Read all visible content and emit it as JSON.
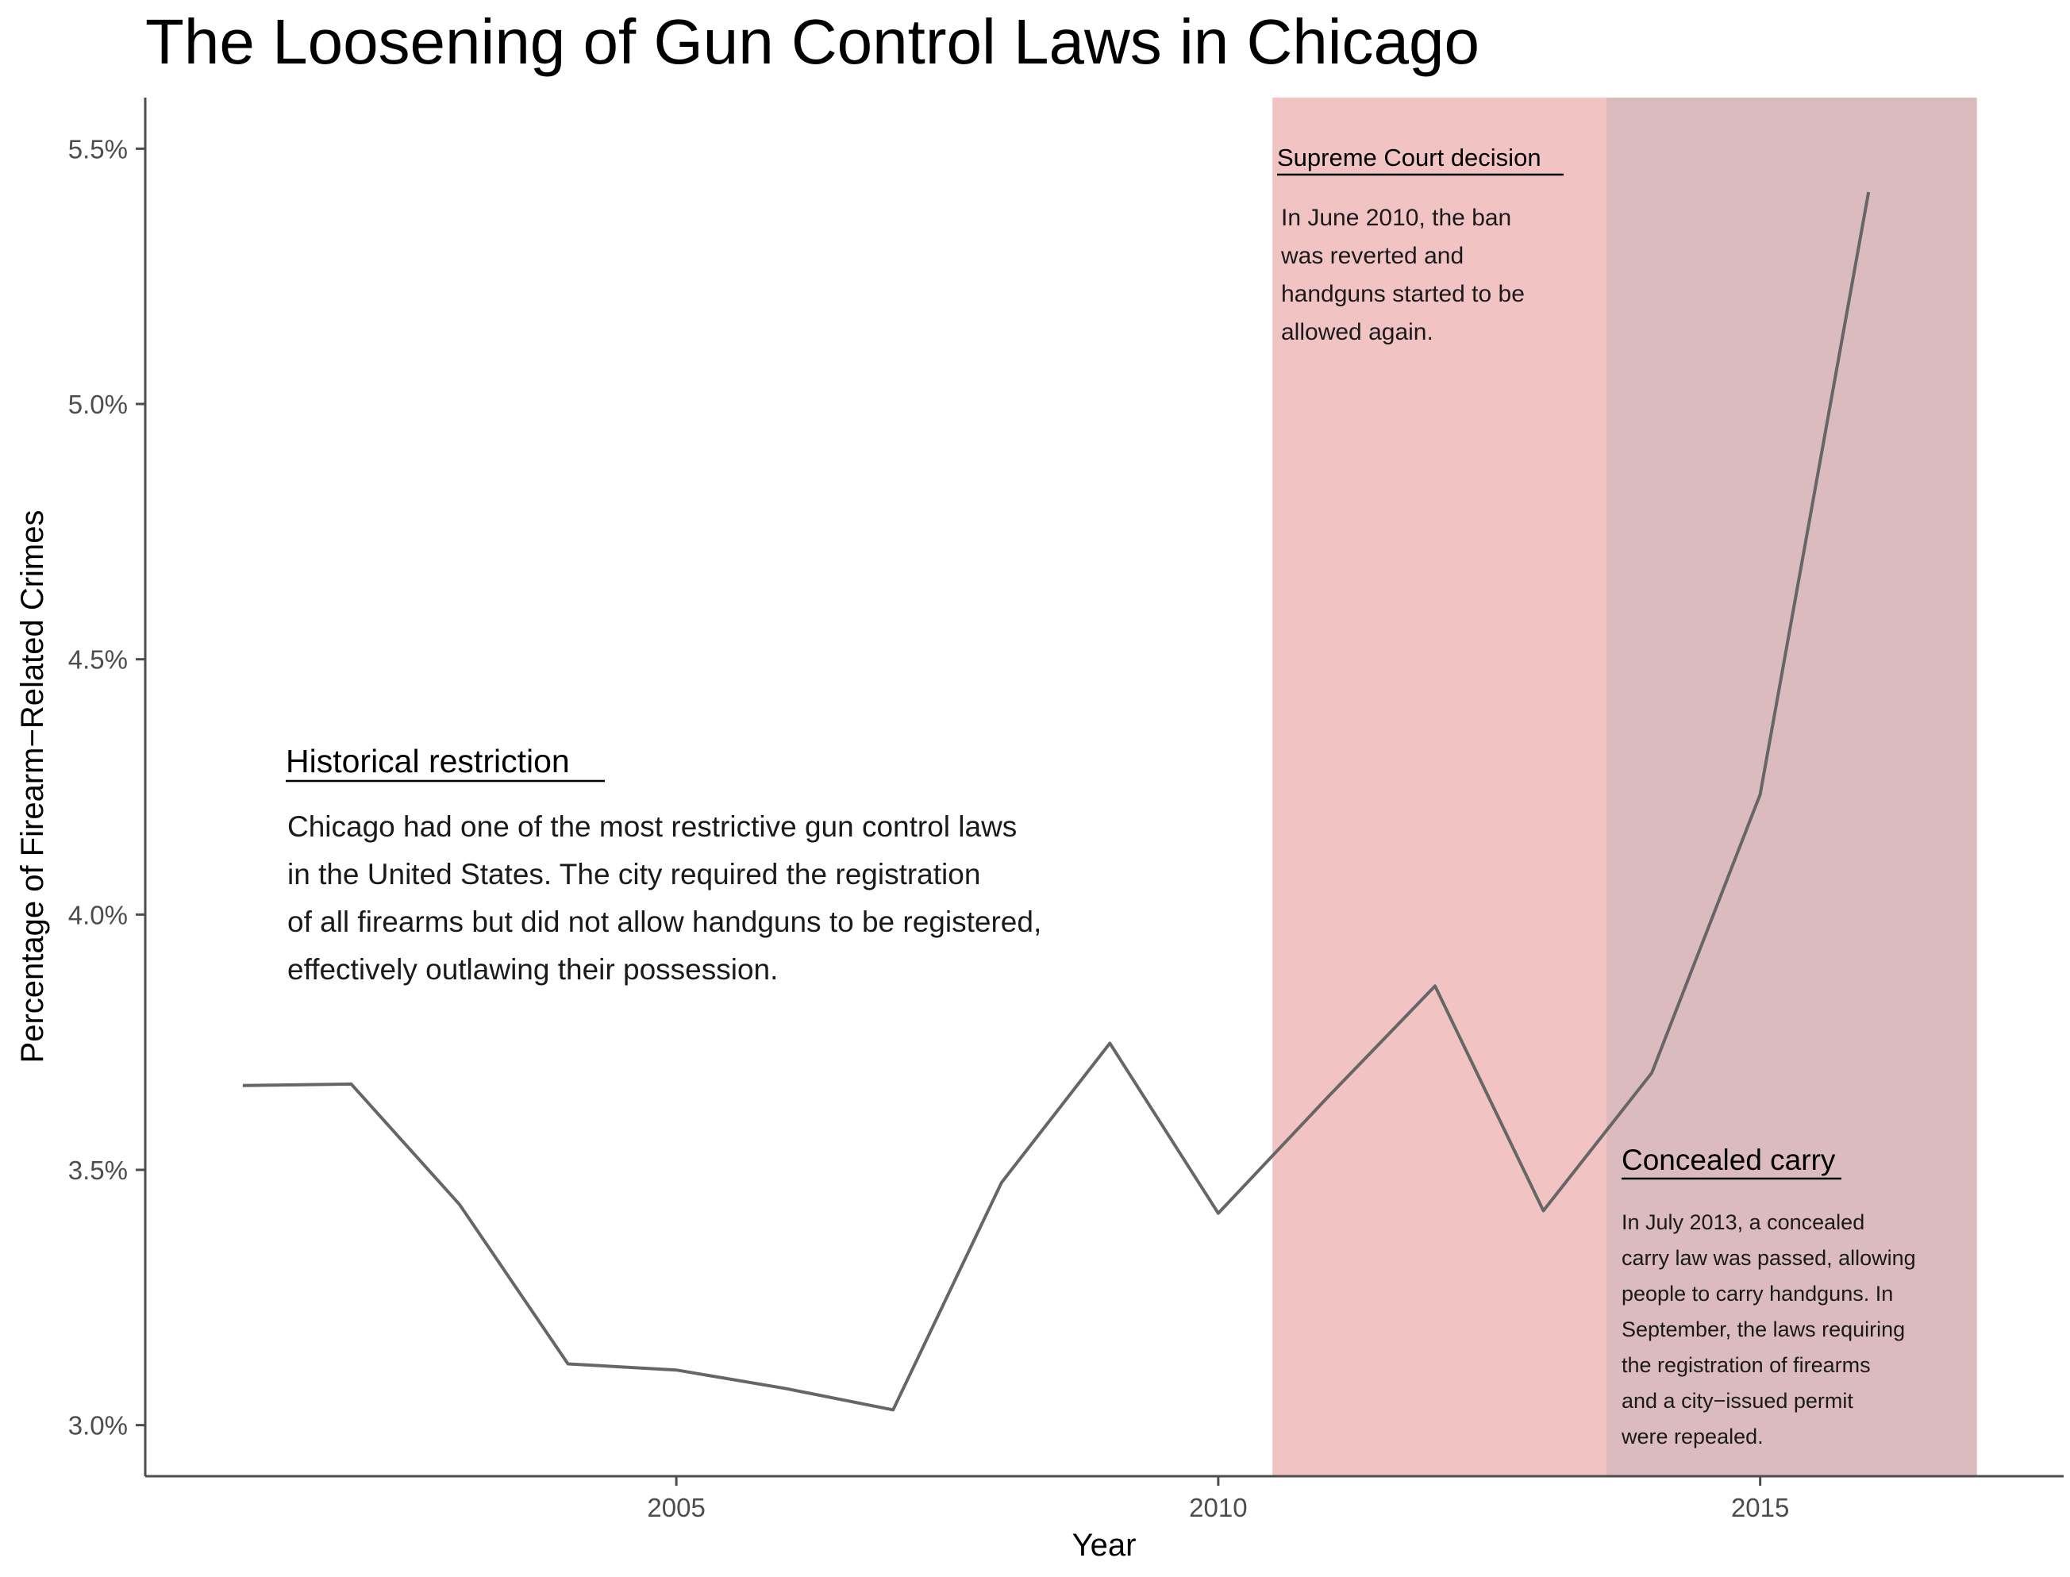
{
  "chart_data": {
    "type": "line",
    "title": "The Loosening of Gun Control Laws in Chicago",
    "xlabel": "Year",
    "ylabel": "Percentage of Firearm−Related Crimes",
    "xlim": [
      2000.1,
      2017.8
    ],
    "ylim": [
      2.9,
      5.6
    ],
    "x_ticks": [
      2005,
      2010,
      2015
    ],
    "x_tick_labels": [
      "2005",
      "2010",
      "2015"
    ],
    "y_ticks": [
      3.0,
      3.5,
      4.0,
      4.5,
      5.0,
      5.5
    ],
    "y_tick_labels": [
      "3.0%",
      "3.5%",
      "4.0%",
      "4.5%",
      "5.0%",
      "5.5%"
    ],
    "grid": false,
    "line_color": "#666666",
    "series": [
      {
        "x": [
          2001,
          2002,
          2003,
          2004,
          2005,
          2006,
          2007,
          2008,
          2009,
          2010,
          2011,
          2012,
          2013,
          2014,
          2015,
          2016
        ],
        "values": [
          3.665,
          3.668,
          3.432,
          3.12,
          3.108,
          3.072,
          3.03,
          3.475,
          3.748,
          3.415,
          3.64,
          3.86,
          3.42,
          3.69,
          4.235,
          5.415
        ]
      }
    ],
    "regions": [
      {
        "x_start": 2010.5,
        "x_end": 2013.58,
        "color": "#f2c3c3"
      },
      {
        "x_start": 2013.58,
        "x_end": 2017.0,
        "color": "#dbbbbd"
      }
    ],
    "annotations": [
      {
        "id": "historical",
        "heading": "Historical restriction",
        "lines": [
          "Chicago had one of the most restrictive gun control laws",
          "in the United States. The city required the registration",
          "of all firearms but did not allow handguns to be registered,",
          "effectively outlawing their possession."
        ]
      },
      {
        "id": "supreme",
        "heading": "Supreme Court decision",
        "lines": [
          "In June 2010, the ban",
          "was reverted and",
          "handguns started to be",
          "allowed again."
        ]
      },
      {
        "id": "concealed",
        "heading": "Concealed carry",
        "lines": [
          "In July 2013, a concealed",
          "carry law was passed, allowing",
          "people to carry handguns. In",
          "September, the laws requiring",
          "the registration of firearms",
          "and a city−issued permit",
          "were repealed."
        ]
      }
    ]
  }
}
